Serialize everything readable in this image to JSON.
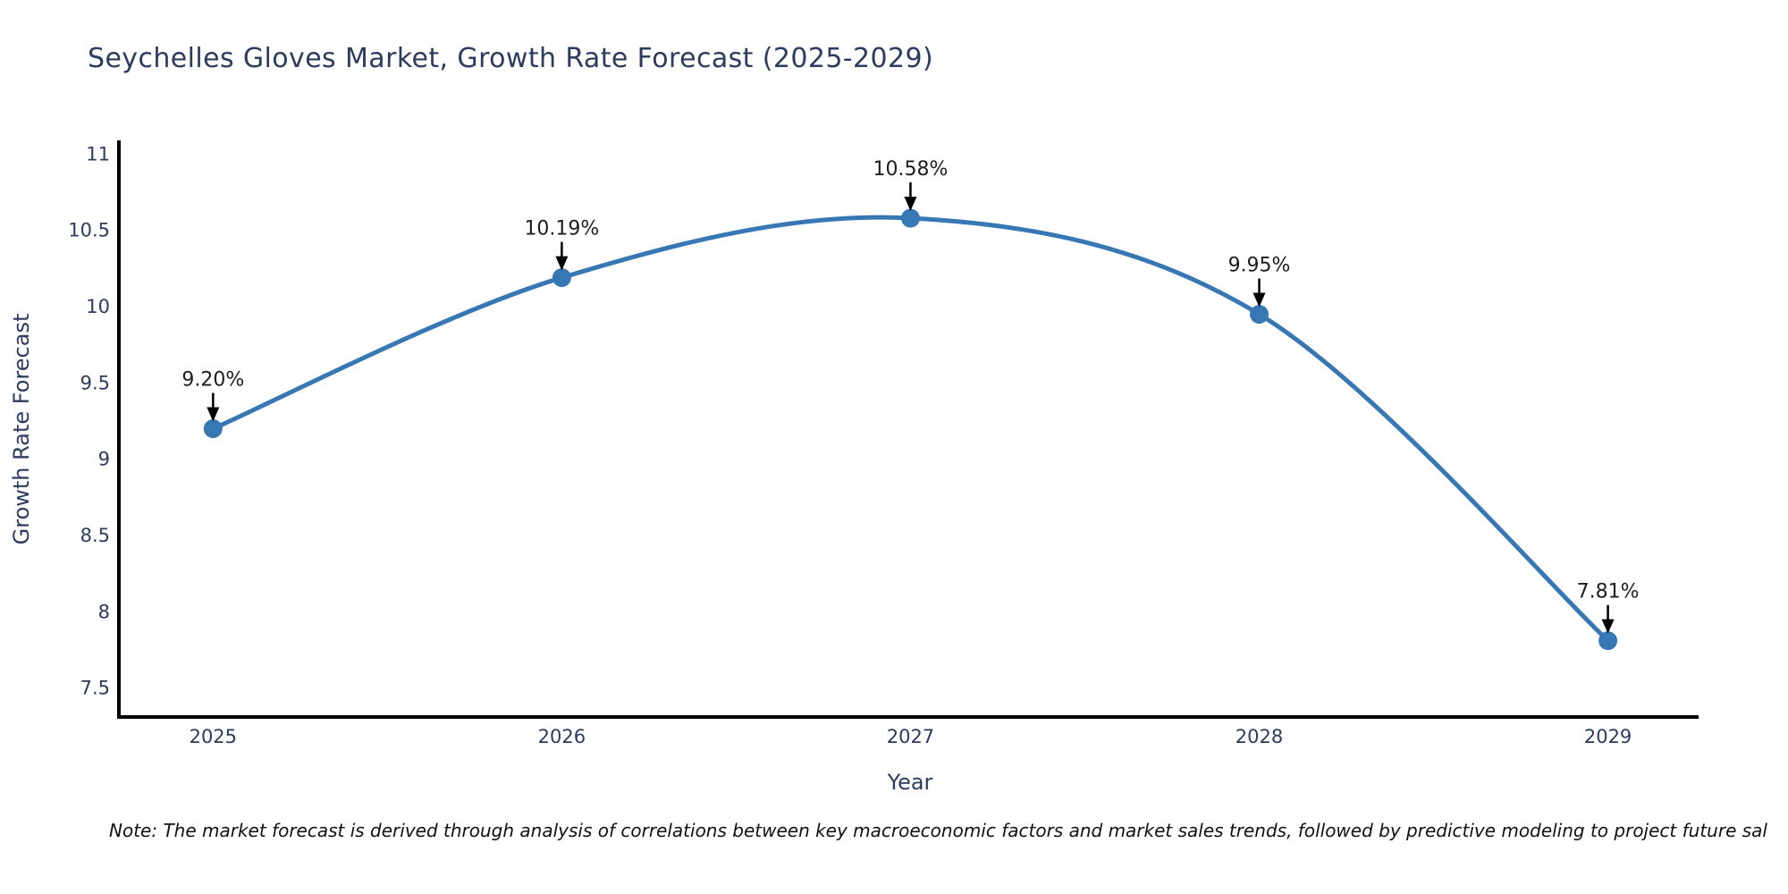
{
  "page": {
    "title": "Seychelles Gloves Market, Growth Rate Forecast (2025-2029)",
    "note": "Note: The market forecast is derived through analysis of correlations between key macroeconomic factors and market sales trends, followed by predictive modeling to project future sal"
  },
  "chart_data": {
    "type": "line",
    "title": "Seychelles Gloves Market, Growth Rate Forecast (2025-2029)",
    "xlabel": "Year",
    "ylabel": "Growth Rate Forecast",
    "categories": [
      2025,
      2026,
      2027,
      2028,
      2029
    ],
    "values": [
      9.2,
      10.19,
      10.58,
      9.95,
      7.81
    ],
    "point_labels": [
      "9.20%",
      "10.19%",
      "10.58%",
      "9.95%",
      "7.81%"
    ],
    "x_ticks": [
      "2025",
      "2026",
      "2027",
      "2028",
      "2029"
    ],
    "y_ticks": [
      7.5,
      8,
      8.5,
      9,
      9.5,
      10,
      10.5,
      11
    ],
    "y_tick_labels": [
      "7.5",
      "8",
      "8.5",
      "9",
      "9.5",
      "10",
      "10.5",
      "11"
    ],
    "x_range": [
      2024.73,
      2029.26
    ],
    "y_range": [
      7.31,
      11.09
    ],
    "line_shape": "spline",
    "grid": false,
    "legend": "none",
    "colors": {
      "line": "#3778b4",
      "marker": "#3778b4",
      "axis": "#000000",
      "axis_text": "#2b3c5e",
      "annotation_text": "#1d1d1d",
      "arrow": "#000000",
      "background": "#ffffff"
    }
  }
}
